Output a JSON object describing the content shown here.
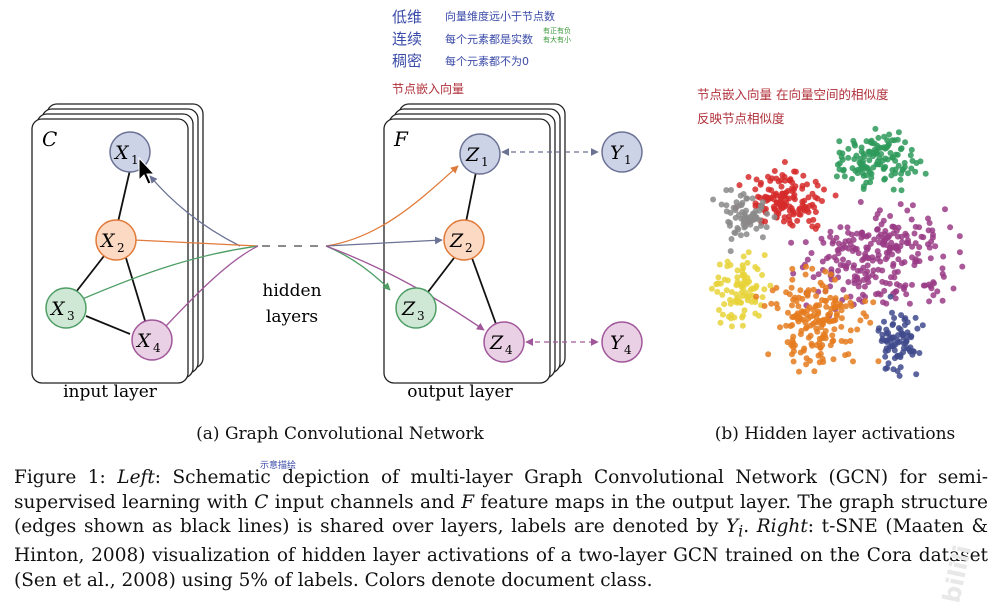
{
  "annotations": {
    "row1_term": "低维",
    "row1_desc": "向量维度远小于节点数",
    "row2_term": "连续",
    "row2_desc": "每个元素都是实数",
    "row2_small_a": "有正有负",
    "row2_small_b": "有大有小",
    "row3_term": "稠密",
    "row3_desc": "每个元素都不为0",
    "node_embedding": "节点嵌入向量",
    "tsne_line1": "节点嵌入向量 在向量空间的相似度",
    "tsne_line2": "反映节点相似度",
    "schematic": "示意描绘"
  },
  "diagram": {
    "input_stack_label": "C",
    "output_stack_label": "F",
    "input_nodes": [
      "X",
      "X",
      "X",
      "X"
    ],
    "input_subs": [
      "1",
      "2",
      "3",
      "4"
    ],
    "output_nodes": [
      "Z",
      "Z",
      "Z",
      "Z"
    ],
    "output_subs": [
      "1",
      "2",
      "3",
      "4"
    ],
    "label_nodes": [
      "Y",
      "Y"
    ],
    "label_subs": [
      "1",
      "4"
    ],
    "hidden_line1": "hidden",
    "hidden_line2": "layers",
    "input_layer_label": "input layer",
    "output_layer_label": "output layer",
    "node_colors": {
      "n1": "#cdd3e6",
      "n1_stroke": "#6b7294",
      "n2": "#fbd9c3",
      "n2_stroke": "#e07a3a",
      "n3": "#cfe8d6",
      "n3_stroke": "#4f9e66",
      "n4": "#ead0e5",
      "n4_stroke": "#a0579a"
    }
  },
  "captions": {
    "a": "(a) Graph Convolutional Network",
    "b": "(b) Hidden layer activations"
  },
  "figure_caption": {
    "lead": "Figure 1:",
    "left": "Left",
    "part1": ": Schematic depiction of multi-layer Graph Convolutional Network (GCN) for semi-supervised learning with ",
    "c": "C",
    "part2": " input channels and ",
    "f": "F",
    "part3": " feature maps in the output layer. The graph structure (edges shown as black lines) is shared over layers, labels are denoted by ",
    "y": "Y",
    "yi": "i",
    "part4": ". ",
    "right": "Right",
    "part5": ": t-SNE (Maaten & Hinton, 2008) visualization of hidden layer activations of a two-layer GCN trained on the Cora dataset (Sen et al., 2008) using 5% of labels. Colors denote document class."
  },
  "tsne_colors": [
    "#d62a2a",
    "#2e9a5a",
    "#8a8a8a",
    "#9a3b86",
    "#e8d33a",
    "#e57b1f",
    "#3f4a8c"
  ],
  "watermark": "bilili"
}
